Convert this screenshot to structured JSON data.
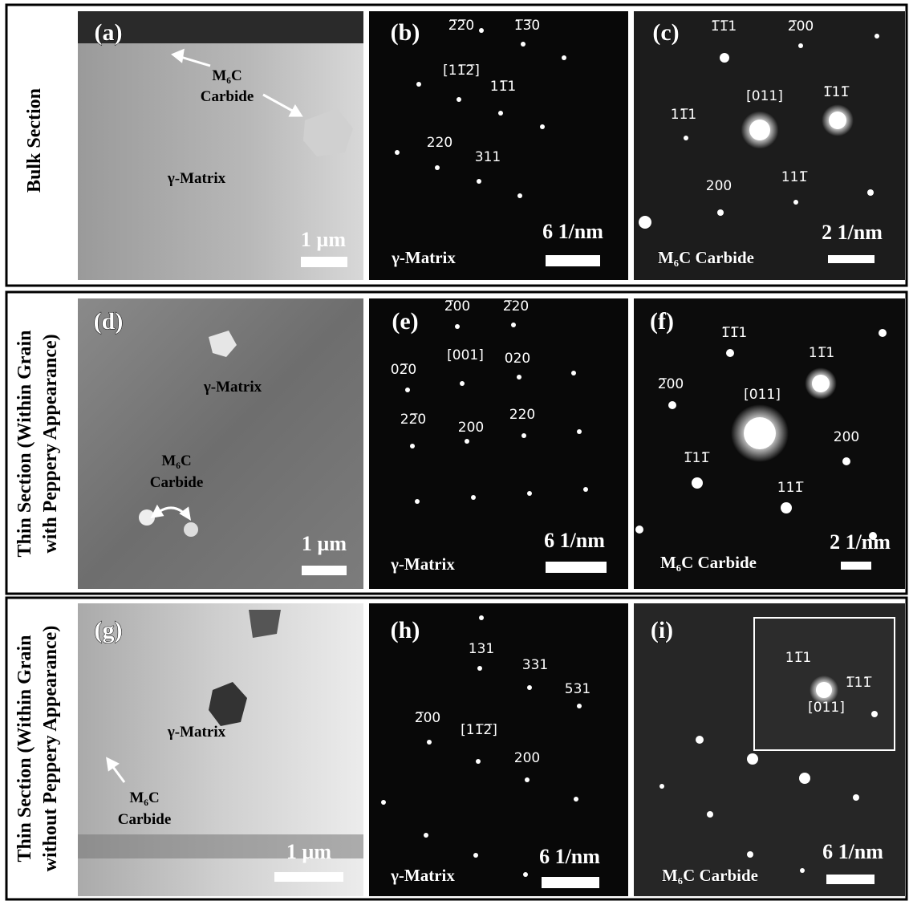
{
  "figure": {
    "rows": [
      {
        "label": [
          "Bulk Section"
        ],
        "panels": [
          {
            "label": "(a)",
            "annotations": [
              "M₆C",
              "Carbide",
              "γ-Matrix"
            ],
            "scale_bar": "1 µm"
          },
          {
            "label": "(b)",
            "spots": [
              "2̅2̅0",
              "1̅3̅0",
              "[11̅2̅]",
              "11̅1",
              "220",
              "311"
            ],
            "phase": "γ-Matrix",
            "scale_bar": "6 1/nm"
          },
          {
            "label": "(c)",
            "spots": [
              "1̅1̅1",
              "2̅00",
              "[011]",
              "1̅11̅",
              "11̅1",
              "200",
              "111̅"
            ],
            "phase": "M₆C Carbide",
            "scale_bar": "2 1/nm"
          }
        ]
      },
      {
        "label": [
          "Thin Section (Within Grain",
          "with Peppery Appearance)"
        ],
        "panels": [
          {
            "label": "(d)",
            "annotations": [
              "γ-Matrix",
              "M₆C",
              "Carbide"
            ],
            "scale_bar": "1 µm"
          },
          {
            "label": "(e)",
            "spots": [
              "2̅00",
              "2̅20",
              "[001]",
              "02̅0",
              "020",
              "22̅0",
              "200",
              "220"
            ],
            "phase": "γ-Matrix",
            "scale_bar": "6 1/nm"
          },
          {
            "label": "(f)",
            "spots": [
              "1̅1̅1",
              "11̅1",
              "2̅00",
              "[011]",
              "200",
              "1̅11̅",
              "111̅"
            ],
            "phase": "M₆C Carbide",
            "scale_bar": "2 1/nm"
          }
        ]
      },
      {
        "label": [
          "Thin Section (Within Grain",
          "without Peppery Appearance)"
        ],
        "panels": [
          {
            "label": "(g)",
            "annotations": [
              "γ-Matrix",
              "M₆C",
              "Carbide"
            ],
            "scale_bar": "1 µm"
          },
          {
            "label": "(h)",
            "spots": [
              "131",
              "331",
              "531",
              "2̅00",
              "[11̅2̅]",
              "200"
            ],
            "phase": "γ-Matrix",
            "scale_bar": "6 1/nm"
          },
          {
            "label": "(i)",
            "spots": [
              "11̅1",
              "1̅11̅",
              "[011]"
            ],
            "phase": "M₆C Carbide",
            "scale_bar": "6 1/nm"
          }
        ]
      }
    ]
  }
}
